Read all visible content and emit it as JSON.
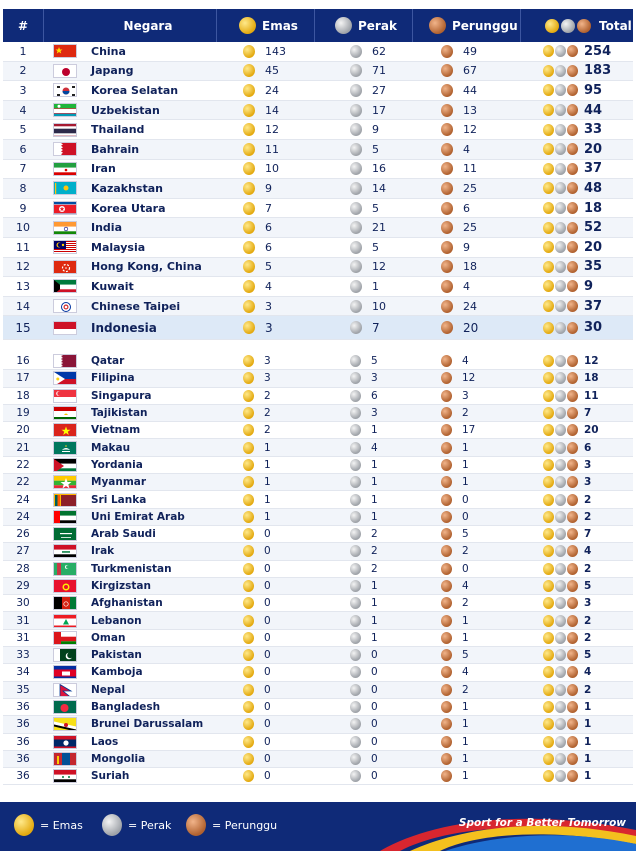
{
  "header": {
    "rank": "#",
    "nation": "Negara",
    "gold": "Emas",
    "silver": "Perak",
    "bronze": "Perunggu",
    "total": "Total"
  },
  "colors": {
    "navy": "#0f2a78",
    "gold": "#e3a90f",
    "silver": "#9ea2a8",
    "bronze": "#b0612f",
    "highlight": "#dde9f7"
  },
  "top_rows": [
    {
      "rank": "1",
      "country": "China",
      "gold": "143",
      "silver": "62",
      "bronze": "49",
      "total": "254",
      "flag": "china"
    },
    {
      "rank": "2",
      "country": "Japang",
      "gold": "45",
      "silver": "71",
      "bronze": "67",
      "total": "183",
      "flag": "japan"
    },
    {
      "rank": "3",
      "country": "Korea Selatan",
      "gold": "24",
      "silver": "27",
      "bronze": "44",
      "total": "95",
      "flag": "south-korea"
    },
    {
      "rank": "4",
      "country": "Uzbekistan",
      "gold": "14",
      "silver": "17",
      "bronze": "13",
      "total": "44",
      "flag": "uzbekistan"
    },
    {
      "rank": "5",
      "country": "Thailand",
      "gold": "12",
      "silver": "9",
      "bronze": "12",
      "total": "33",
      "flag": "thailand"
    },
    {
      "rank": "6",
      "country": "Bahrain",
      "gold": "11",
      "silver": "5",
      "bronze": "4",
      "total": "20",
      "flag": "bahrain"
    },
    {
      "rank": "7",
      "country": "Iran",
      "gold": "10",
      "silver": "16",
      "bronze": "11",
      "total": "37",
      "flag": "iran"
    },
    {
      "rank": "8",
      "country": "Kazakhstan",
      "gold": "9",
      "silver": "14",
      "bronze": "25",
      "total": "48",
      "flag": "kazakhstan"
    },
    {
      "rank": "9",
      "country": "Korea Utara",
      "gold": "7",
      "silver": "5",
      "bronze": "6",
      "total": "18",
      "flag": "north-korea"
    },
    {
      "rank": "10",
      "country": "India",
      "gold": "6",
      "silver": "21",
      "bronze": "25",
      "total": "52",
      "flag": "india"
    },
    {
      "rank": "11",
      "country": "Malaysia",
      "gold": "6",
      "silver": "5",
      "bronze": "9",
      "total": "20",
      "flag": "malaysia"
    },
    {
      "rank": "12",
      "country": "Hong Kong, China",
      "gold": "5",
      "silver": "12",
      "bronze": "18",
      "total": "35",
      "flag": "hong-kong"
    },
    {
      "rank": "13",
      "country": "Kuwait",
      "gold": "4",
      "silver": "1",
      "bronze": "4",
      "total": "9",
      "flag": "kuwait"
    },
    {
      "rank": "14",
      "country": "Chinese Taipei",
      "gold": "3",
      "silver": "10",
      "bronze": "24",
      "total": "37",
      "flag": "chinese-taipei"
    },
    {
      "rank": "15",
      "country": "Indonesia",
      "gold": "3",
      "silver": "7",
      "bronze": "20",
      "total": "30",
      "flag": "indonesia"
    }
  ],
  "bottom_rows": [
    {
      "rank": "16",
      "country": "Qatar",
      "gold": "3",
      "silver": "5",
      "bronze": "4",
      "total": "12",
      "flag": "qatar"
    },
    {
      "rank": "17",
      "country": "Filipina",
      "gold": "3",
      "silver": "3",
      "bronze": "12",
      "total": "18",
      "flag": "philippines"
    },
    {
      "rank": "18",
      "country": "Singapura",
      "gold": "2",
      "silver": "6",
      "bronze": "3",
      "total": "11",
      "flag": "singapore"
    },
    {
      "rank": "19",
      "country": "Tajikistan",
      "gold": "2",
      "silver": "3",
      "bronze": "2",
      "total": "7",
      "flag": "tajikistan"
    },
    {
      "rank": "20",
      "country": "Vietnam",
      "gold": "2",
      "silver": "1",
      "bronze": "17",
      "total": "20",
      "flag": "vietnam"
    },
    {
      "rank": "21",
      "country": "Makau",
      "gold": "1",
      "silver": "4",
      "bronze": "1",
      "total": "6",
      "flag": "macau"
    },
    {
      "rank": "22",
      "country": "Yordania",
      "gold": "1",
      "silver": "1",
      "bronze": "1",
      "total": "3",
      "flag": "jordan"
    },
    {
      "rank": "22",
      "country": "Myanmar",
      "gold": "1",
      "silver": "1",
      "bronze": "1",
      "total": "3",
      "flag": "myanmar"
    },
    {
      "rank": "24",
      "country": "Sri Lanka",
      "gold": "1",
      "silver": "1",
      "bronze": "0",
      "total": "2",
      "flag": "sri-lanka"
    },
    {
      "rank": "24",
      "country": "Uni Emirat Arab",
      "gold": "1",
      "silver": "1",
      "bronze": "0",
      "total": "2",
      "flag": "uae"
    },
    {
      "rank": "26",
      "country": "Arab Saudi",
      "gold": "0",
      "silver": "2",
      "bronze": "5",
      "total": "7",
      "flag": "saudi-arabia"
    },
    {
      "rank": "27",
      "country": "Irak",
      "gold": "0",
      "silver": "2",
      "bronze": "2",
      "total": "4",
      "flag": "iraq"
    },
    {
      "rank": "28",
      "country": "Turkmenistan",
      "gold": "0",
      "silver": "2",
      "bronze": "0",
      "total": "2",
      "flag": "turkmenistan"
    },
    {
      "rank": "29",
      "country": "Kirgizstan",
      "gold": "0",
      "silver": "1",
      "bronze": "4",
      "total": "5",
      "flag": "kyrgyzstan"
    },
    {
      "rank": "30",
      "country": "Afghanistan",
      "gold": "0",
      "silver": "1",
      "bronze": "2",
      "total": "3",
      "flag": "afghanistan"
    },
    {
      "rank": "31",
      "country": "Lebanon",
      "gold": "0",
      "silver": "1",
      "bronze": "1",
      "total": "2",
      "flag": "lebanon"
    },
    {
      "rank": "31",
      "country": "Oman",
      "gold": "0",
      "silver": "1",
      "bronze": "1",
      "total": "2",
      "flag": "oman"
    },
    {
      "rank": "33",
      "country": "Pakistan",
      "gold": "0",
      "silver": "0",
      "bronze": "5",
      "total": "5",
      "flag": "pakistan"
    },
    {
      "rank": "34",
      "country": "Kamboja",
      "gold": "0",
      "silver": "0",
      "bronze": "4",
      "total": "4",
      "flag": "cambodia"
    },
    {
      "rank": "35",
      "country": "Nepal",
      "gold": "0",
      "silver": "0",
      "bronze": "2",
      "total": "2",
      "flag": "nepal"
    },
    {
      "rank": "36",
      "country": "Bangladesh",
      "gold": "0",
      "silver": "0",
      "bronze": "1",
      "total": "1",
      "flag": "bangladesh"
    },
    {
      "rank": "36",
      "country": "Brunei Darussalam",
      "gold": "0",
      "silver": "0",
      "bronze": "1",
      "total": "1",
      "flag": "brunei"
    },
    {
      "rank": "36",
      "country": "Laos",
      "gold": "0",
      "silver": "0",
      "bronze": "1",
      "total": "1",
      "flag": "laos"
    },
    {
      "rank": "36",
      "country": "Mongolia",
      "gold": "0",
      "silver": "0",
      "bronze": "1",
      "total": "1",
      "flag": "mongolia"
    },
    {
      "rank": "36",
      "country": "Suriah",
      "gold": "0",
      "silver": "0",
      "bronze": "1",
      "total": "1",
      "flag": "syria"
    }
  ],
  "footer": {
    "legend_gold": "= Emas",
    "legend_silver": "= Perak",
    "legend_bronze": "= Perunggu",
    "slogan": "Sport for a Better Tomorrow"
  }
}
